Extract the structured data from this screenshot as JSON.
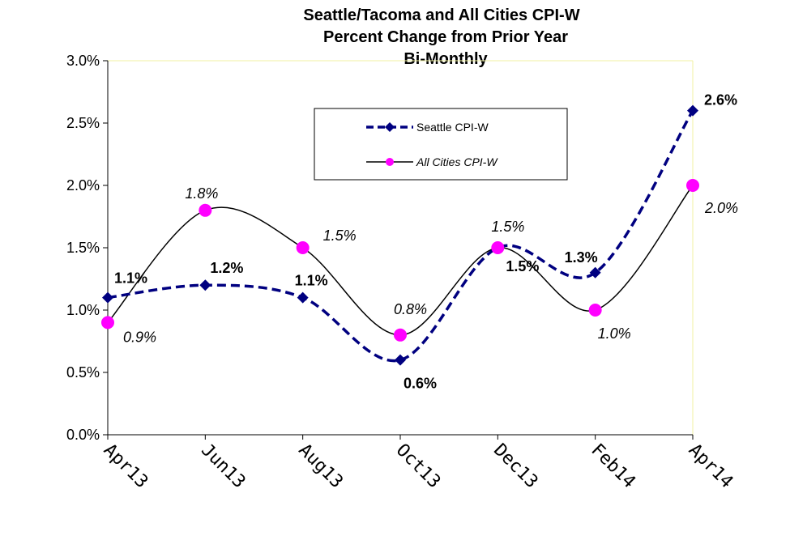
{
  "chart_data": {
    "type": "line",
    "title_lines": [
      "Seattle/Tacoma and All Cities CPI-W",
      "Percent Change from Prior Year",
      "Bi-Monthly"
    ],
    "categories": [
      "Apr13",
      "Jun13",
      "Aug13",
      "Oct13",
      "Dec13",
      "Feb14",
      "Apr14"
    ],
    "ylim": [
      0,
      3.0
    ],
    "yticks": [
      "0.0%",
      "0.5%",
      "1.0%",
      "1.5%",
      "2.0%",
      "2.5%",
      "3.0%"
    ],
    "legend_position": "top-center",
    "series": [
      {
        "name": "Seattle CPI-W",
        "values": [
          1.1,
          1.2,
          1.1,
          0.6,
          1.5,
          1.3,
          2.6
        ],
        "labels": [
          "1.1%",
          "1.2%",
          "1.1%",
          "0.6%",
          "1.5%",
          "1.3%",
          "2.6%"
        ],
        "color": "#000080",
        "style": "dashed",
        "marker": "diamond"
      },
      {
        "name": "All Cities CPI-W",
        "values": [
          0.9,
          1.8,
          1.5,
          0.8,
          1.5,
          1.0,
          2.0
        ],
        "labels": [
          "0.9%",
          "1.8%",
          "1.5%",
          "0.8%",
          "1.5%",
          "1.0%",
          "2.0%"
        ],
        "color": "#000000",
        "marker_color": "#ff00ff",
        "style": "solid",
        "marker": "circle"
      }
    ]
  }
}
